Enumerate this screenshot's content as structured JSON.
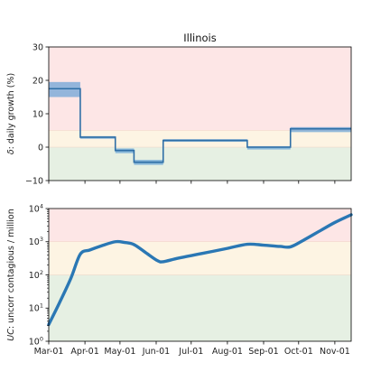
{
  "chart_data": [
    {
      "type": "line",
      "title": "Illinois",
      "ylabel": "δ: daily growth (%)",
      "ylim": [
        -10,
        30
      ],
      "yticks": [
        -10,
        0,
        10,
        20,
        30
      ],
      "xlim": [
        "2020-03-01",
        "2020-11-15"
      ],
      "zones": [
        {
          "from": 5,
          "to": 30,
          "color": "#fde6e6"
        },
        {
          "from": 0,
          "to": 5,
          "color": "#fdf4e3"
        },
        {
          "from": -10,
          "to": 0,
          "color": "#e6f0e3"
        }
      ],
      "series": [
        {
          "color": "#2e6ea6",
          "x": [
            "2020-03-01",
            "2020-03-28",
            "2020-03-28",
            "2020-04-27",
            "2020-04-27",
            "2020-05-13",
            "2020-05-13",
            "2020-06-07",
            "2020-06-07",
            "2020-08-18",
            "2020-08-18",
            "2020-09-24",
            "2020-09-24",
            "2020-11-15"
          ],
          "y": [
            17.5,
            17.5,
            3,
            3,
            -1,
            -1,
            -4.5,
            -4.5,
            2,
            2,
            0,
            0,
            5.5,
            5.5
          ],
          "band": [
            [
              15,
              19.5
            ],
            [
              15,
              19.5
            ],
            [
              2.5,
              3.3
            ],
            [
              2.5,
              3.3
            ],
            [
              -1.8,
              -0.4
            ],
            [
              -1.8,
              -0.4
            ],
            [
              -5.3,
              -3.8
            ],
            [
              -5.3,
              -3.8
            ],
            [
              1.6,
              2.4
            ],
            [
              1.6,
              2.4
            ],
            [
              -0.7,
              0.3
            ],
            [
              -0.7,
              0.3
            ],
            [
              4.5,
              6
            ],
            [
              4.5,
              6
            ]
          ]
        }
      ]
    },
    {
      "type": "line",
      "ylabel": "UC: uncorr contagious / million",
      "yscale": "log",
      "ylim": [
        1,
        10000
      ],
      "yticks": [
        1,
        10,
        100,
        1000,
        10000
      ],
      "ytick_labels": [
        {
          "base": "10",
          "exp": "0"
        },
        {
          "base": "10",
          "exp": "1"
        },
        {
          "base": "10",
          "exp": "2"
        },
        {
          "base": "10",
          "exp": "3"
        },
        {
          "base": "10",
          "exp": "4"
        }
      ],
      "xlim": [
        "2020-03-01",
        "2020-11-15"
      ],
      "xticks": [
        "2020-03-01",
        "2020-04-01",
        "2020-05-01",
        "2020-06-01",
        "2020-07-01",
        "2020-08-01",
        "2020-09-01",
        "2020-10-01",
        "2020-11-01"
      ],
      "xtick_labels": [
        "Mar-01",
        "Apr-01",
        "May-01",
        "Jun-01",
        "Jul-01",
        "Aug-01",
        "Sep-01",
        "Oct-01",
        "Nov-01"
      ],
      "zones": [
        {
          "from": 1000,
          "to": 10000,
          "color": "#fde6e6"
        },
        {
          "from": 100,
          "to": 1000,
          "color": "#fdf4e3"
        },
        {
          "from": 1,
          "to": 100,
          "color": "#e6f0e3"
        }
      ],
      "series": [
        {
          "color": "#2a77b4",
          "x": [
            "2020-03-01",
            "2020-03-10",
            "2020-03-20",
            "2020-03-28",
            "2020-04-05",
            "2020-04-15",
            "2020-04-27",
            "2020-05-05",
            "2020-05-13",
            "2020-05-23",
            "2020-06-02",
            "2020-06-07",
            "2020-06-20",
            "2020-07-10",
            "2020-08-01",
            "2020-08-18",
            "2020-09-01",
            "2020-09-15",
            "2020-09-24",
            "2020-10-05",
            "2020-10-20",
            "2020-11-01",
            "2020-11-15"
          ],
          "y": [
            3.2,
            14,
            80,
            420,
            560,
            750,
            1000,
            950,
            820,
            470,
            270,
            250,
            320,
            440,
            630,
            840,
            790,
            720,
            700,
            1100,
            2200,
            3800,
            6500
          ]
        }
      ]
    }
  ]
}
